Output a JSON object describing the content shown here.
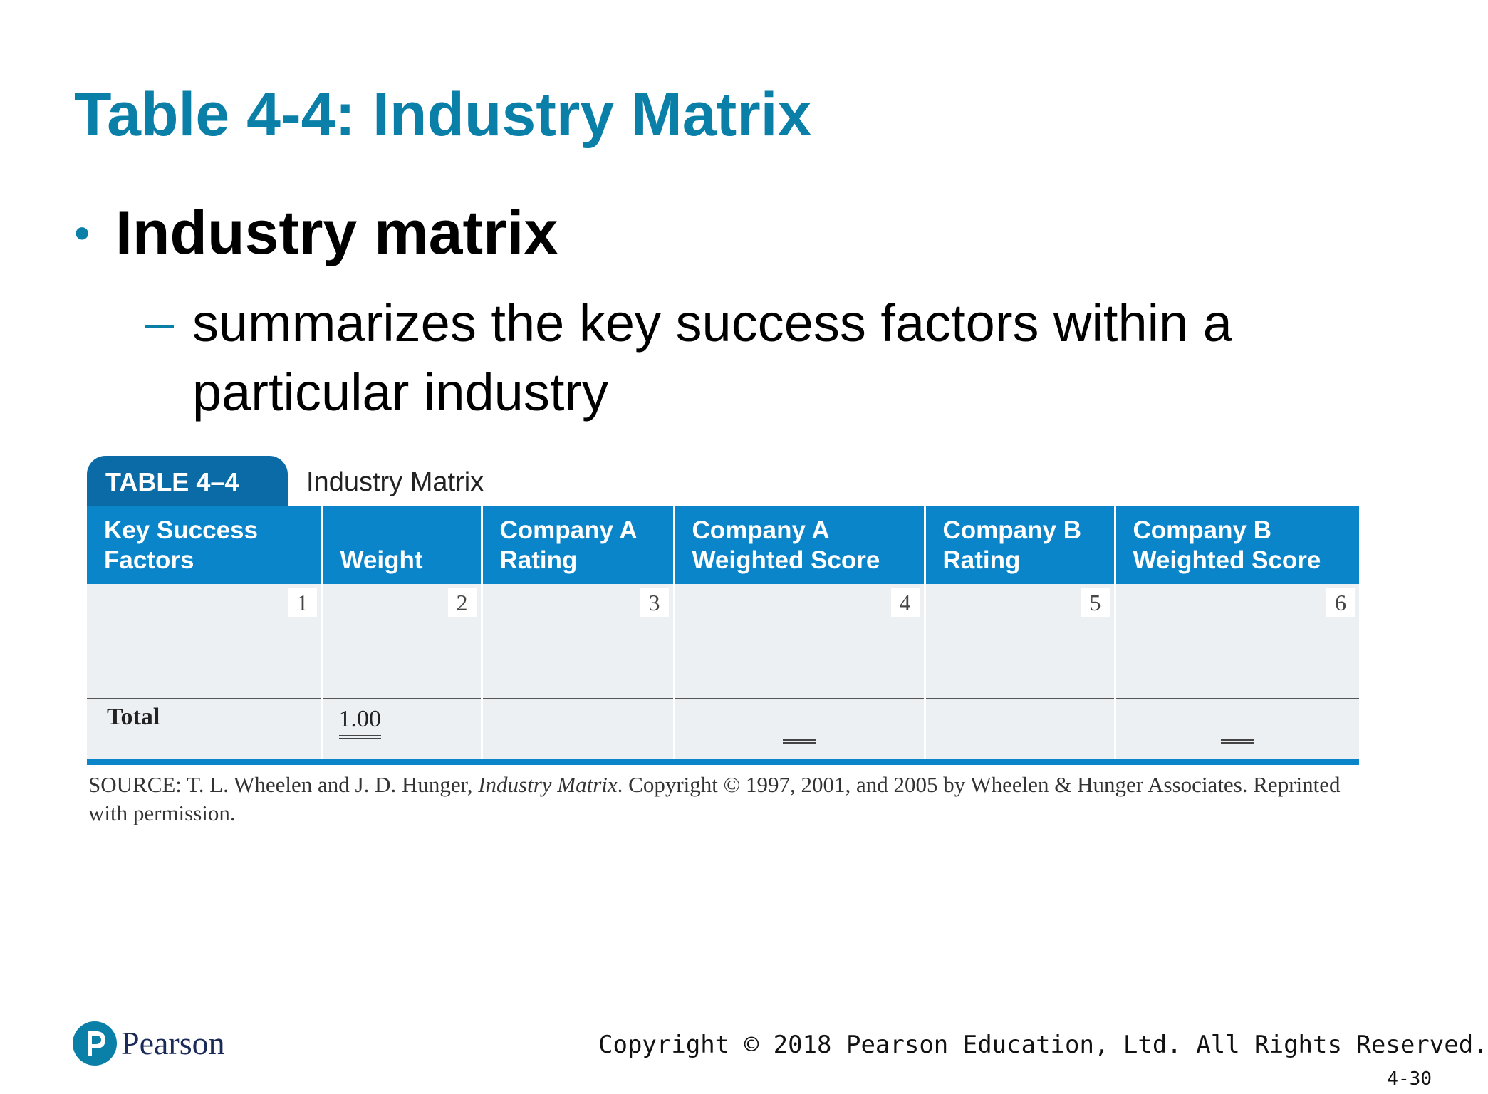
{
  "slide": {
    "title": "Table 4-4: Industry Matrix",
    "bullet": "Industry matrix",
    "sub_dash": "–",
    "sub_bullet": "summarizes the key success factors within a particular industry"
  },
  "table": {
    "tab_label": "TABLE 4–4",
    "caption": "Industry Matrix",
    "headers": [
      "Key Success Factors",
      "Weight",
      "Company A Rating",
      "Company A Weighted Score",
      "Company B Rating",
      "Company B Weighted Score"
    ],
    "column_numbers": [
      "1",
      "2",
      "3",
      "4",
      "5",
      "6"
    ],
    "total_label": "Total",
    "total_weight": "1.00",
    "source_prefix": "SOURCE: T. L. Wheelen and J. D. Hunger,",
    "source_title": "Industry Matrix",
    "source_suffix": ". Copyright © 1997, 2001, and 2005 by Wheelen & Hunger Associates. Reprinted with permission."
  },
  "footer": {
    "logo_text": "Pearson",
    "copyright": "Copyright © 2018 Pearson Education, Ltd. All Rights Reserved.",
    "page": "4-30"
  },
  "colors": {
    "title": "#0a7fa8",
    "table_header": "#0b85c9",
    "tab": "#0b6ba6"
  }
}
